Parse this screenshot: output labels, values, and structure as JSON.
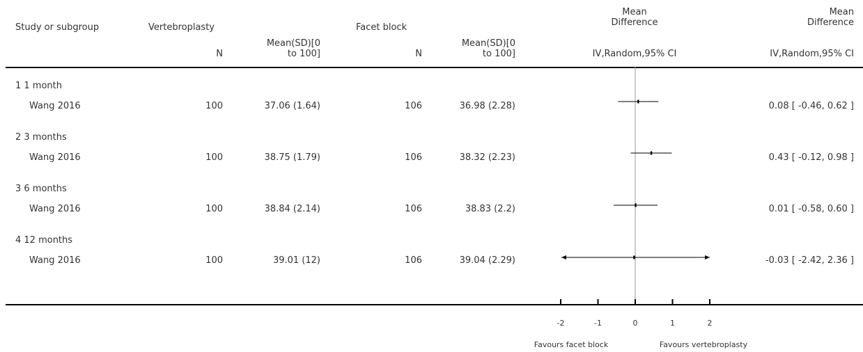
{
  "headers": {
    "study": "Study or subgroup",
    "group1": "Vertebroplasty",
    "group2": "Facet block",
    "n1": "N",
    "mean1_line1": "Mean(SD)[0",
    "mean1_line2": "to 100]",
    "n2": "N",
    "mean2_line1": "Mean(SD)[0",
    "mean2_line2": "to 100]",
    "md_plot_line1": "Mean",
    "md_plot_line2": "Difference",
    "md_plot_method": "IV,Random,95% CI",
    "md_text_line1": "Mean",
    "md_text_line2": "Difference",
    "md_text_method": "IV,Random,95% CI"
  },
  "subgroups": [
    {
      "label": "1 1 month",
      "study": {
        "name": "Wang 2016",
        "n1": "100",
        "mean_sd1": "37.06 (1.64)",
        "n2": "106",
        "mean_sd2": "36.98 (2.28)",
        "ci_text": "0.08 [ -0.46, 0.62 ]"
      }
    },
    {
      "label": "2 3 months",
      "study": {
        "name": "Wang 2016",
        "n1": "100",
        "mean_sd1": "38.75 (1.79)",
        "n2": "106",
        "mean_sd2": "38.32 (2.23)",
        "ci_text": "0.43 [ -0.12, 0.98 ]"
      }
    },
    {
      "label": "3 6 months",
      "study": {
        "name": "Wang 2016",
        "n1": "100",
        "mean_sd1": "38.84 (2.14)",
        "n2": "106",
        "mean_sd2": "38.83 (2.2)",
        "ci_text": "0.01 [ -0.58, 0.60 ]"
      }
    },
    {
      "label": "4 12 months",
      "study": {
        "name": "Wang 2016",
        "n1": "100",
        "mean_sd1": "39.01 (12)",
        "n2": "106",
        "mean_sd2": "39.04 (2.29)",
        "ci_text": "-0.03 [ -2.42, 2.36 ]"
      }
    }
  ],
  "axis": {
    "favours_left": "Favours facet block",
    "favours_right": "Favours vertebroplasty"
  },
  "chart_data": {
    "type": "forest",
    "x_ticks": [
      "-2",
      "-1",
      "0",
      "1",
      "2"
    ],
    "xlim": [
      -2,
      2
    ],
    "null_line": 0,
    "estimates": [
      {
        "subgroup": "1 1 month",
        "study": "Wang 2016",
        "md": 0.08,
        "lower": -0.46,
        "upper": 0.62,
        "clipped_left": false,
        "clipped_right": false
      },
      {
        "subgroup": "2 3 months",
        "study": "Wang 2016",
        "md": 0.43,
        "lower": -0.12,
        "upper": 0.98,
        "clipped_left": false,
        "clipped_right": false
      },
      {
        "subgroup": "3 6 months",
        "study": "Wang 2016",
        "md": 0.01,
        "lower": -0.58,
        "upper": 0.6,
        "clipped_left": false,
        "clipped_right": false
      },
      {
        "subgroup": "4 12 months",
        "study": "Wang 2016",
        "md": -0.03,
        "lower": -2.42,
        "upper": 2.36,
        "clipped_left": true,
        "clipped_right": true
      }
    ]
  }
}
